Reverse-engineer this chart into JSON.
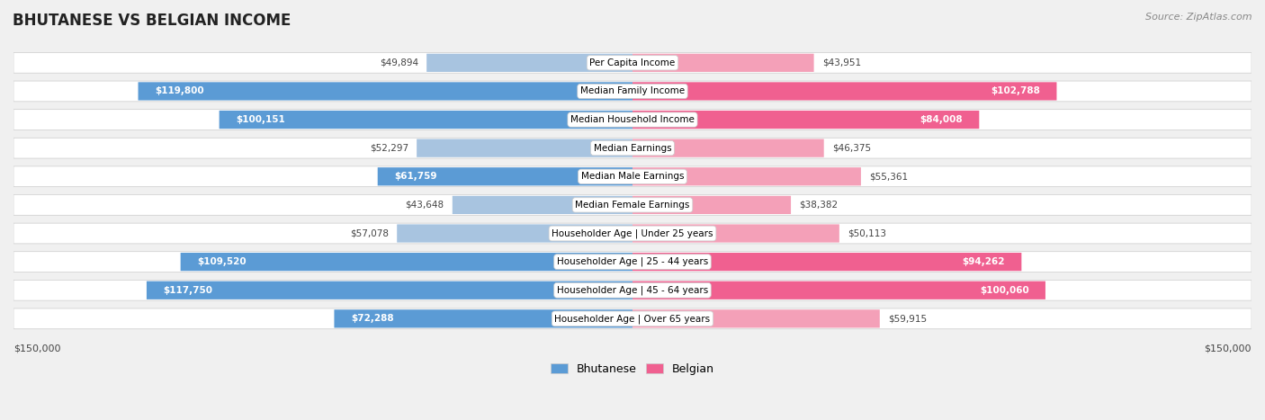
{
  "title": "BHUTANESE VS BELGIAN INCOME",
  "source": "Source: ZipAtlas.com",
  "categories": [
    "Per Capita Income",
    "Median Family Income",
    "Median Household Income",
    "Median Earnings",
    "Median Male Earnings",
    "Median Female Earnings",
    "Householder Age | Under 25 years",
    "Householder Age | 25 - 44 years",
    "Householder Age | 45 - 64 years",
    "Householder Age | Over 65 years"
  ],
  "bhutanese": [
    49894,
    119800,
    100151,
    52297,
    61759,
    43648,
    57078,
    109520,
    117750,
    72288
  ],
  "belgian": [
    43951,
    102788,
    84008,
    46375,
    55361,
    38382,
    50113,
    94262,
    100060,
    59915
  ],
  "bhutanese_labels": [
    "$49,894",
    "$119,800",
    "$100,151",
    "$52,297",
    "$61,759",
    "$43,648",
    "$57,078",
    "$109,520",
    "$117,750",
    "$72,288"
  ],
  "belgian_labels": [
    "$43,951",
    "$102,788",
    "$84,008",
    "$46,375",
    "$55,361",
    "$38,382",
    "$50,113",
    "$94,262",
    "$100,060",
    "$59,915"
  ],
  "bhutanese_color_light": "#a8c4e0",
  "bhutanese_color_dark": "#5b9bd5",
  "belgian_color_light": "#f4a0b8",
  "belgian_color_dark": "#f06090",
  "max_value": 150000,
  "background_color": "#f0f0f0",
  "row_bg_color": "#ffffff",
  "legend_bhutanese": "Bhutanese",
  "legend_belgian": "Belgian"
}
